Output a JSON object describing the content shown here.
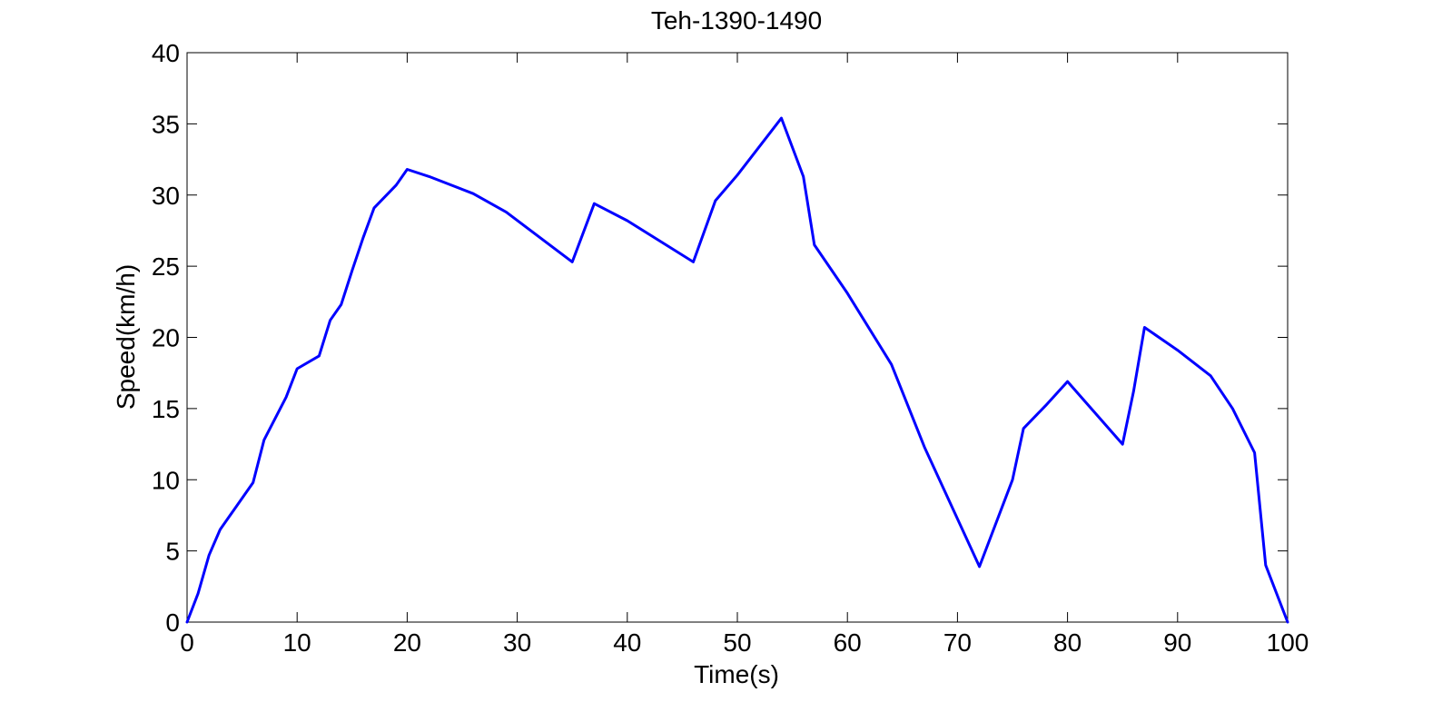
{
  "chart_data": {
    "type": "line",
    "title": "Teh-1390-1490",
    "xlabel": "Time(s)",
    "ylabel": "Speed(km/h)",
    "xlim": [
      0,
      100
    ],
    "ylim": [
      0,
      40
    ],
    "xticks": [
      0,
      10,
      20,
      30,
      40,
      50,
      60,
      70,
      80,
      90,
      100
    ],
    "yticks": [
      0,
      5,
      10,
      15,
      20,
      25,
      30,
      35,
      40
    ],
    "grid": false,
    "series": [
      {
        "color": "#0000ff",
        "x": [
          0,
          1,
          2,
          3,
          6,
          7,
          9,
          10,
          12,
          13,
          14,
          15,
          16,
          17,
          19,
          20,
          22,
          25,
          26,
          29,
          35,
          37,
          40,
          46,
          48,
          50,
          54,
          56,
          57,
          60,
          64,
          67,
          72,
          75,
          76,
          78,
          80,
          85,
          86,
          87,
          90,
          93,
          95,
          97,
          98,
          100
        ],
        "y": [
          0,
          2,
          4.7,
          6.5,
          9.8,
          12.8,
          15.8,
          17.8,
          18.7,
          21.2,
          22.3,
          24.7,
          27,
          29.1,
          30.7,
          31.8,
          31.3,
          30.4,
          30.1,
          28.8,
          25.3,
          29.4,
          28.2,
          25.3,
          29.6,
          31.4,
          35.4,
          31.3,
          26.5,
          23.1,
          18.1,
          12.3,
          3.9,
          10,
          13.6,
          15.2,
          16.9,
          12.5,
          16.2,
          20.7,
          19.1,
          17.3,
          15,
          11.9,
          4,
          0
        ]
      }
    ]
  }
}
